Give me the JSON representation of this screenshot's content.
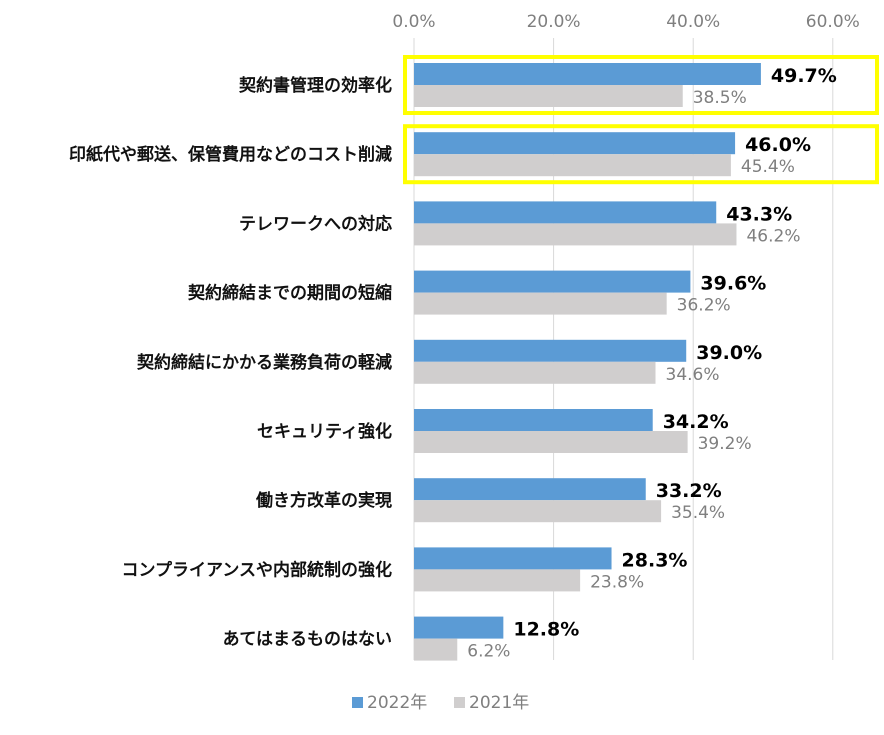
{
  "chart_data": {
    "type": "bar",
    "orientation": "horizontal",
    "title": "",
    "xlabel": "",
    "ylabel": "",
    "xlim": [
      0,
      60
    ],
    "x_ticks": [
      "0.0%",
      "20.0%",
      "40.0%",
      "60.0%"
    ],
    "x_tick_values": [
      0,
      20,
      40,
      60
    ],
    "grid": true,
    "legend_position": "bottom",
    "categories": [
      "契約書管理の効率化",
      "印紙代や郵送、保管費用などのコスト削減",
      "テレワークへの対応",
      "契約締結までの期間の短縮",
      "契約締結にかかる業務負荷の軽減",
      "セキュリティ強化",
      "働き方改革の実現",
      "コンプライアンスや内部統制の強化",
      "あてはまるものはない"
    ],
    "highlighted_categories": [
      "契約書管理の効率化",
      "印紙代や郵送、保管費用などのコスト削減"
    ],
    "highlight_color": "#ffff00",
    "series": [
      {
        "name": "2022年",
        "color": "#5b9bd5",
        "values": [
          49.7,
          46.0,
          43.3,
          39.6,
          39.0,
          34.2,
          33.2,
          28.3,
          12.8
        ],
        "labels": [
          "49.7%",
          "46.0%",
          "43.3%",
          "39.6%",
          "39.0%",
          "34.2%",
          "33.2%",
          "28.3%",
          "12.8%"
        ]
      },
      {
        "name": "2021年",
        "color": "#d0cece",
        "values": [
          38.5,
          45.4,
          46.2,
          36.2,
          34.6,
          39.2,
          35.4,
          23.8,
          6.2
        ],
        "labels": [
          "38.5%",
          "45.4%",
          "46.2%",
          "36.2%",
          "34.6%",
          "39.2%",
          "35.4%",
          "23.8%",
          "6.2%"
        ]
      }
    ]
  }
}
